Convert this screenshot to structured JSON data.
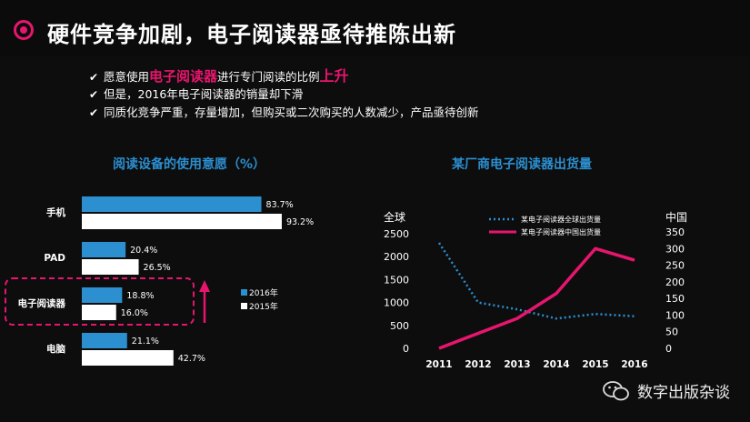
{
  "title": "硬件竞争加剧，电子阅读器亟待推陈出新",
  "bullets": {
    "b1_pre": "愿意使用",
    "b1_hl": "电子阅读器",
    "b1_mid": "进行专门阅读的比例",
    "b1_hl2": "上升",
    "b2": "但是，2016年电子阅读器的销量却下滑",
    "b3": "同质化竞争严重，存量增加，但购买或二次购买的人数减少，产品亟待创新"
  },
  "chart_data": [
    {
      "type": "bar",
      "title": "阅读设备的使用意愿（%）",
      "categories": [
        "手机",
        "PAD",
        "电子阅读器",
        "电脑"
      ],
      "series": [
        {
          "name": "2016年",
          "values": [
            83.7,
            20.4,
            18.8,
            21.1
          ],
          "labels": [
            "83.7%",
            "20.4%",
            "18.8%",
            "21.1%"
          ],
          "color": "#2b8fd0"
        },
        {
          "name": "2015年",
          "values": [
            93.2,
            26.5,
            16.0,
            42.7
          ],
          "labels": [
            "93.2%",
            "26.5%",
            "16.0%",
            "42.7%"
          ],
          "color": "#ffffff"
        }
      ],
      "orientation": "horizontal",
      "xlim": [
        0,
        100
      ],
      "highlight_category": "电子阅读器"
    },
    {
      "type": "line",
      "title": "某厂商电子阅读器出货量",
      "x": [
        "2011",
        "2012",
        "2013",
        "2014",
        "2015",
        "2016"
      ],
      "left_axis_label": "全球",
      "right_axis_label": "中国",
      "left_ylim": [
        0,
        2500
      ],
      "right_ylim": [
        0,
        350
      ],
      "left_ticks": [
        "2500",
        "2000",
        "1500",
        "1000",
        "500",
        "0"
      ],
      "right_ticks": [
        "350",
        "300",
        "250",
        "200",
        "150",
        "100",
        "50",
        "0"
      ],
      "series": [
        {
          "name": "某电子阅读器全球出货量",
          "axis": "left",
          "style": "dotted",
          "color": "#2b8fd0",
          "values": [
            2300,
            1000,
            850,
            650,
            750,
            700
          ]
        },
        {
          "name": "某电子阅读器中国出货量",
          "axis": "right",
          "style": "solid",
          "color": "#e8156e",
          "values": [
            0,
            45,
            90,
            165,
            300,
            265
          ]
        }
      ]
    }
  ],
  "watermark": "数字出版杂谈",
  "colors": {
    "accent": "#e8156e",
    "blue": "#2b8fd0",
    "background": "#0d0d0d"
  }
}
